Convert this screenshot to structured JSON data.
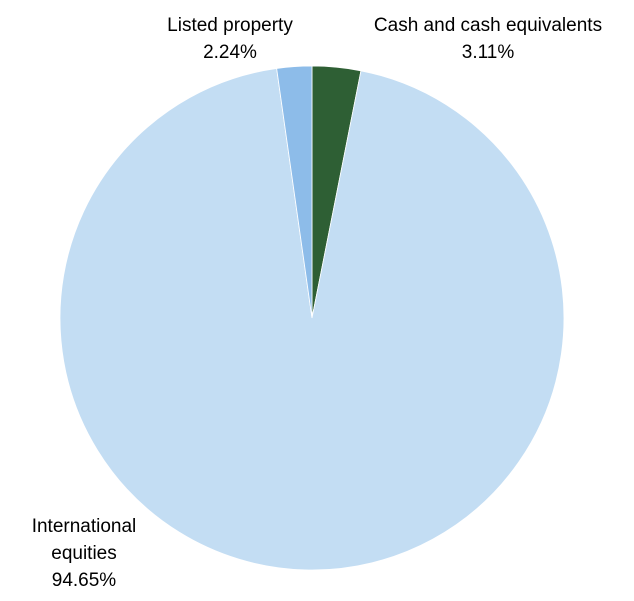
{
  "chart_data": {
    "type": "pie",
    "title": "",
    "start_angle_deg": 0,
    "direction": "clockwise",
    "slices": [
      {
        "name": "Cash and cash equivalents",
        "name_lines": [
          "Cash and cash equivalents"
        ],
        "value": 3.11,
        "value_label": "3.11%",
        "color": "#2e5f34"
      },
      {
        "name": "International equities",
        "name_lines": [
          "International",
          "equities"
        ],
        "value": 94.65,
        "value_label": "94.65%",
        "color": "#c3ddf3"
      },
      {
        "name": "Listed property",
        "name_lines": [
          "Listed property"
        ],
        "value": 2.24,
        "value_label": "2.24%",
        "color": "#8dbce9"
      }
    ]
  }
}
